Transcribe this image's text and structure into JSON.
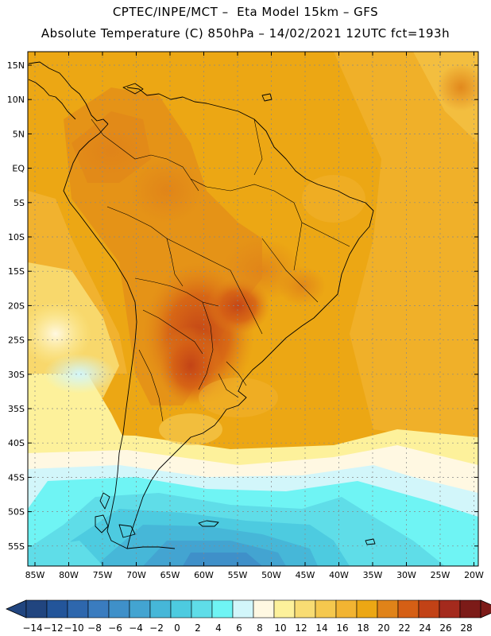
{
  "title_line1": "CPTEC/INPE/MCT –  Eta Model 15km – GFS",
  "title_line2": "Absolute Temperature (C) 850hPa – 14/02/2021 12UTC fct=193h",
  "lat_labels": [
    "15N",
    "10N",
    "5N",
    "EQ",
    "5S",
    "10S",
    "15S",
    "20S",
    "25S",
    "30S",
    "35S",
    "40S",
    "45S",
    "50S",
    "55S"
  ],
  "lon_labels": [
    "85W",
    "80W",
    "75W",
    "70W",
    "65W",
    "60W",
    "55W",
    "50W",
    "45W",
    "40W",
    "35W",
    "30W",
    "25W",
    "20W"
  ],
  "colorbar": {
    "labels": [
      "-14",
      "-12",
      "-10",
      "-8",
      "-6",
      "-4",
      "-2",
      "0",
      "2",
      "4",
      "6",
      "8",
      "10",
      "12",
      "14",
      "16",
      "18",
      "20",
      "22",
      "24",
      "26",
      "28"
    ],
    "colors": [
      "#21457f",
      "#23559a",
      "#2e67ad",
      "#3a7cbf",
      "#3f90c9",
      "#43a4d1",
      "#46b7d8",
      "#4dcbe0",
      "#5fdde8",
      "#6ff4f4",
      "#d2f6fa",
      "#fff8e2",
      "#fdf19b",
      "#f8dc73",
      "#f5c84e",
      "#f2b432",
      "#eca714",
      "#e08319",
      "#d55f15",
      "#c24216",
      "#a42a1d",
      "#7c1b18"
    ],
    "under_color": "#21457f",
    "over_color": "#7c1b18"
  },
  "map": {
    "background_color": "#eca714",
    "warm_core_color": "#d55f15",
    "ocean_colors": {
      "cool": "#f8dc73",
      "pale": "#fff8e2",
      "cyan": "#6ff4f4",
      "blue": "#46b7d8",
      "deep": "#3a7cbf"
    }
  }
}
